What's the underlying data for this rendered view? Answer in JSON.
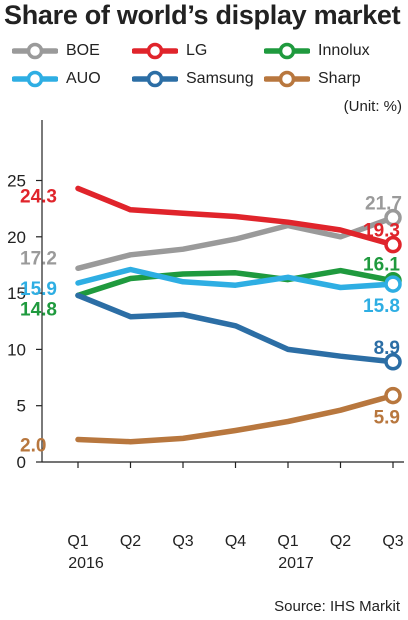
{
  "chart_data": {
    "type": "line",
    "title": "Share of world’s display market",
    "unit": "(Unit: %)",
    "source": "Source: IHS Markit",
    "categories": [
      "Q1",
      "Q2",
      "Q3",
      "Q4",
      "Q1",
      "Q2",
      "Q3"
    ],
    "year_labels": [
      "2016",
      "",
      "",
      "",
      "2017",
      "",
      ""
    ],
    "ylim": [
      0,
      25
    ],
    "yticks": [
      0,
      5,
      10,
      15,
      20,
      25
    ],
    "grid": false,
    "legend_position": "top",
    "series": [
      {
        "name": "BOE",
        "color": "#9a9a9a",
        "values": [
          17.2,
          18.4,
          18.9,
          19.8,
          21.0,
          20.0,
          21.7
        ],
        "labels": {
          "0": "17.2",
          "6": "21.7"
        }
      },
      {
        "name": "LG",
        "color": "#e0242b",
        "values": [
          24.3,
          22.4,
          22.1,
          21.8,
          21.3,
          20.6,
          19.3
        ],
        "labels": {
          "0": "24.3",
          "6": "19.3"
        }
      },
      {
        "name": "Innolux",
        "color": "#1f9a3e",
        "values": [
          14.8,
          16.3,
          16.7,
          16.8,
          16.2,
          17.0,
          16.1
        ],
        "labels": {
          "0": "14.8",
          "6": "16.1"
        }
      },
      {
        "name": "AUO",
        "color": "#2eaee3",
        "values": [
          15.9,
          17.1,
          16.0,
          15.7,
          16.4,
          15.5,
          15.8
        ],
        "labels": {
          "0": "15.9",
          "6": "15.8"
        }
      },
      {
        "name": "Samsung",
        "color": "#2c6ea5",
        "values": [
          14.8,
          12.9,
          13.1,
          12.1,
          10.0,
          9.4,
          8.9
        ],
        "labels": {
          "6": "8.9"
        }
      },
      {
        "name": "Sharp",
        "color": "#b8773e",
        "values": [
          2.0,
          1.8,
          2.1,
          2.8,
          3.6,
          4.6,
          5.9
        ],
        "labels": {
          "0": "2.0",
          "6": "5.9"
        }
      }
    ]
  }
}
